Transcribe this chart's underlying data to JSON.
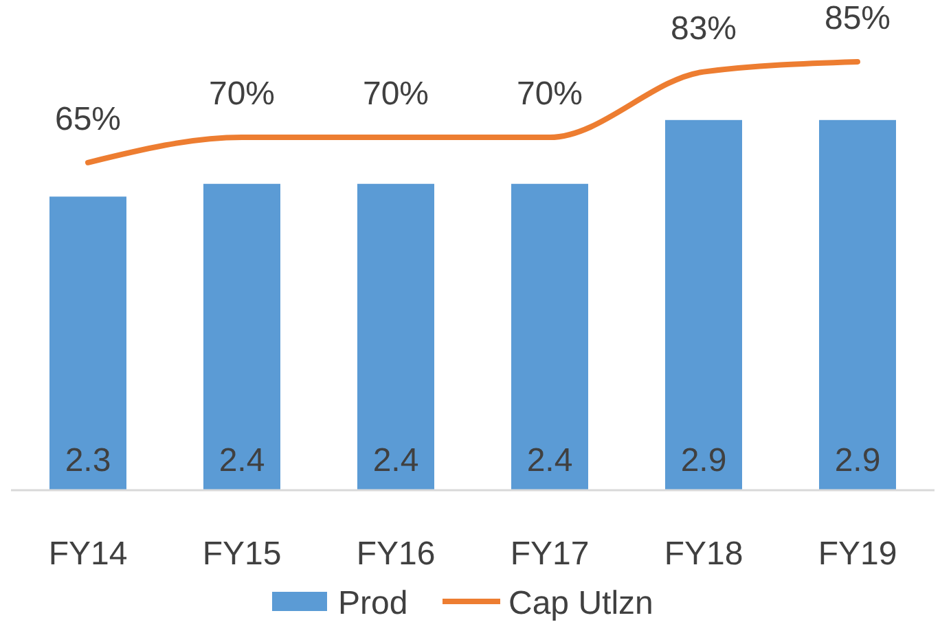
{
  "chart_data": {
    "type": "bar",
    "categories": [
      "FY14",
      "FY15",
      "FY16",
      "FY17",
      "FY18",
      "FY19"
    ],
    "series": [
      {
        "name": "Prod",
        "color": "#5b9bd5",
        "values": [
          2.3,
          2.4,
          2.4,
          2.4,
          2.9,
          2.9
        ]
      },
      {
        "name": "Cap Utlzn",
        "type": "line",
        "axis": "y2",
        "color": "#ed7d31",
        "values": [
          65,
          70,
          70,
          70,
          83,
          85
        ],
        "value_labels": [
          "65%",
          "70%",
          "70%",
          "70%",
          "83%",
          "85%"
        ]
      }
    ],
    "tick_labels": "x",
    "data_labels": true,
    "legend": "bottom",
    "marker": "none"
  }
}
